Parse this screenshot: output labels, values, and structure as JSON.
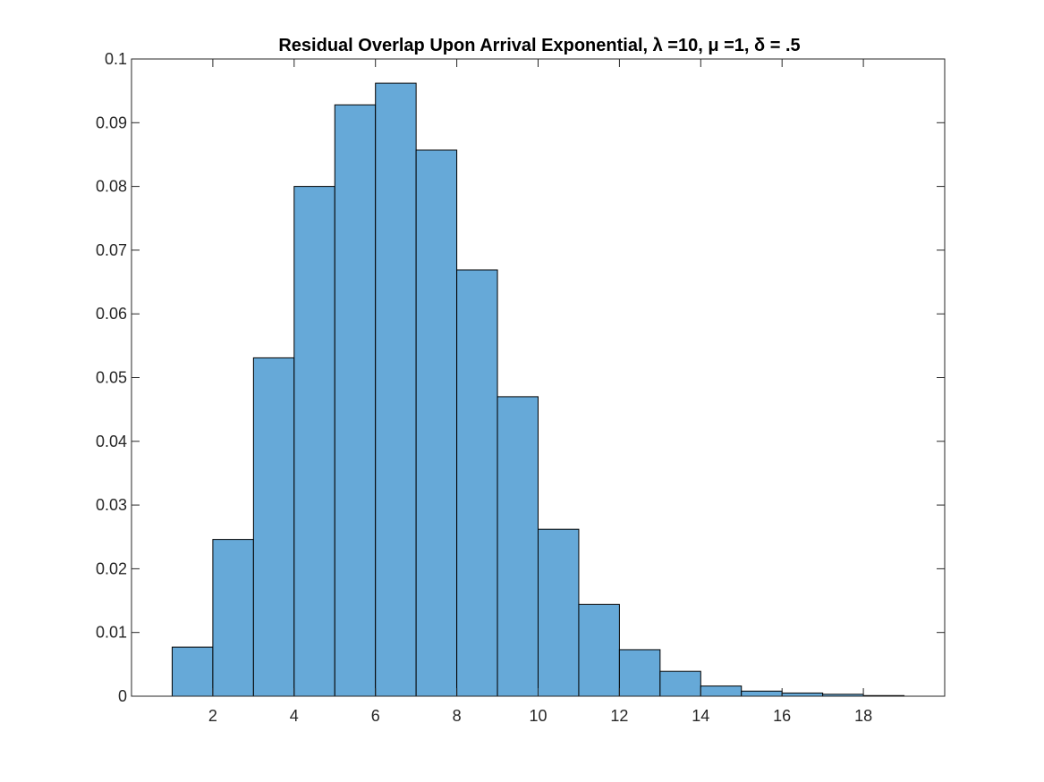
{
  "chart_data": {
    "type": "bar",
    "title": "Residual Overlap Upon Arrival Exponential, λ =10, μ =1, δ = .5",
    "xlabel": "",
    "ylabel": "",
    "xlim": [
      0,
      20
    ],
    "ylim": [
      0,
      0.1
    ],
    "x_ticks": [
      2,
      4,
      6,
      8,
      10,
      12,
      14,
      16,
      18
    ],
    "y_ticks": [
      0,
      0.01,
      0.02,
      0.03,
      0.04,
      0.05,
      0.06,
      0.07,
      0.08,
      0.09,
      0.1
    ],
    "y_tick_labels": [
      "0",
      "0.01",
      "0.02",
      "0.03",
      "0.04",
      "0.05",
      "0.06",
      "0.07",
      "0.08",
      "0.09",
      "0.1"
    ],
    "bin_edges": [
      1,
      2,
      3,
      4,
      5,
      6,
      7,
      8,
      9,
      10,
      11,
      12,
      13,
      14,
      15,
      16,
      17,
      18,
      19
    ],
    "values": [
      0.0077,
      0.0246,
      0.0531,
      0.08,
      0.0928,
      0.0962,
      0.0857,
      0.0669,
      0.047,
      0.0262,
      0.0144,
      0.0073,
      0.0039,
      0.0016,
      0.0008,
      0.0005,
      0.0003,
      0.0001
    ],
    "grid": false,
    "bar_color": "#66a9d8",
    "edge_color": "#000000",
    "axis_color": "#262626"
  }
}
